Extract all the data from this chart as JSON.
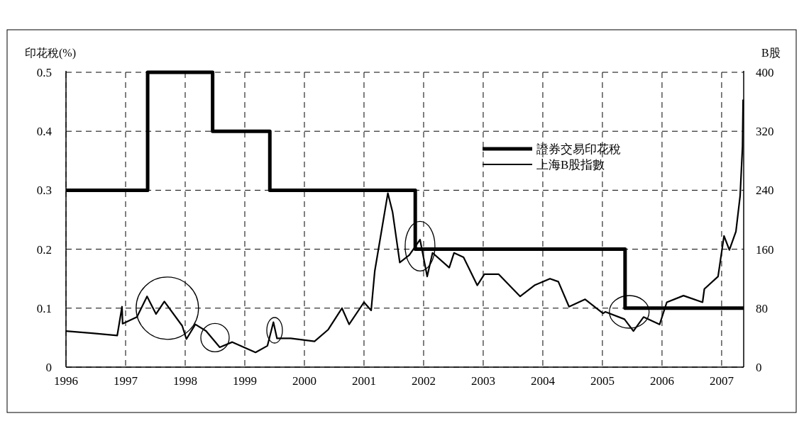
{
  "chart_data": {
    "type": "line",
    "ylabel": "印花稅(%)",
    "y2label": "B股",
    "xlim": [
      1996,
      2007.37
    ],
    "xticks": [
      1996,
      1997,
      1998,
      1999,
      2000,
      2001,
      2002,
      2003,
      2004,
      2005,
      2006,
      2007
    ],
    "ylim": [
      0,
      0.5
    ],
    "yticks": [
      0,
      0.1,
      0.2,
      0.3,
      0.4,
      0.5
    ],
    "y2lim": [
      0,
      400
    ],
    "y2ticks": [
      0,
      80,
      160,
      240,
      320,
      400
    ],
    "grid": true,
    "legend": "top right",
    "line_style": "solid",
    "series": [
      {
        "name": "證券交易印花稅",
        "type": "step",
        "color": "#000000",
        "x": [
          1996,
          1997.37,
          1998.46,
          1999.42,
          2001.86,
          2005.38,
          2007.37
        ],
        "values": [
          0.3,
          0.5,
          0.4,
          0.3,
          0.2,
          0.1,
          0.1
        ]
      },
      {
        "name": "上海B股指數",
        "axis": "y2",
        "color": "#000000",
        "x": [
          1996.0,
          1996.44,
          1996.86,
          1996.94,
          1996.95,
          1997.19,
          1997.36,
          1997.51,
          1997.65,
          1997.95,
          1998.02,
          1998.17,
          1998.35,
          1998.58,
          1998.79,
          1999.18,
          1999.38,
          1999.48,
          1999.54,
          1999.77,
          2000.17,
          2000.4,
          2000.63,
          2000.75,
          2001.0,
          2001.12,
          2001.18,
          2001.4,
          2001.48,
          2001.6,
          2001.76,
          2001.94,
          2002.06,
          2002.15,
          2002.43,
          2002.51,
          2002.67,
          2002.9,
          2003.02,
          2003.26,
          2003.62,
          2003.86,
          2004.12,
          2004.26,
          2004.44,
          2004.71,
          2005.01,
          2005.05,
          2005.37,
          2005.52,
          2005.69,
          2005.96,
          2006.08,
          2006.36,
          2006.68,
          2006.71,
          2006.94,
          2007.04,
          2007.13,
          2007.24,
          2007.31,
          2007.35,
          2007.36
        ],
        "values": [
          49,
          46,
          43,
          82,
          59,
          68,
          96,
          72,
          89,
          56,
          38,
          58,
          49,
          27,
          34,
          20,
          29,
          61,
          39,
          39,
          35,
          51,
          80,
          58,
          88,
          77,
          130,
          236,
          210,
          142,
          152,
          173,
          123,
          155,
          135,
          155,
          149,
          111,
          126,
          126,
          96,
          111,
          120,
          116,
          82,
          92,
          73,
          75,
          65,
          49,
          68,
          58,
          88,
          97,
          88,
          106,
          123,
          178,
          159,
          184,
          232,
          299,
          363
        ]
      }
    ]
  }
}
